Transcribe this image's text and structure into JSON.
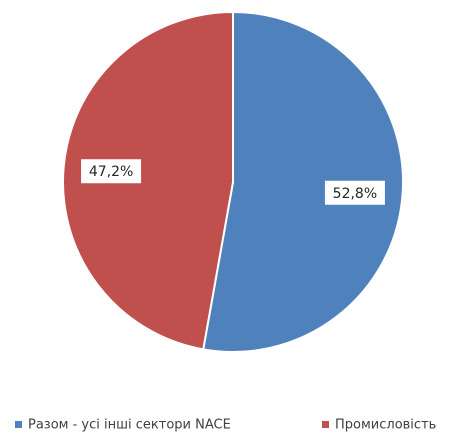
{
  "chart_data": {
    "type": "pie",
    "categories": [
      "Разом - усі інші сектори NACE",
      "Промисловість"
    ],
    "values": [
      52.8,
      47.2
    ],
    "value_labels": [
      "52,8%",
      "47,2%"
    ],
    "colors": [
      "#4f81bd",
      "#c0504d"
    ],
    "legend": "bottom"
  }
}
